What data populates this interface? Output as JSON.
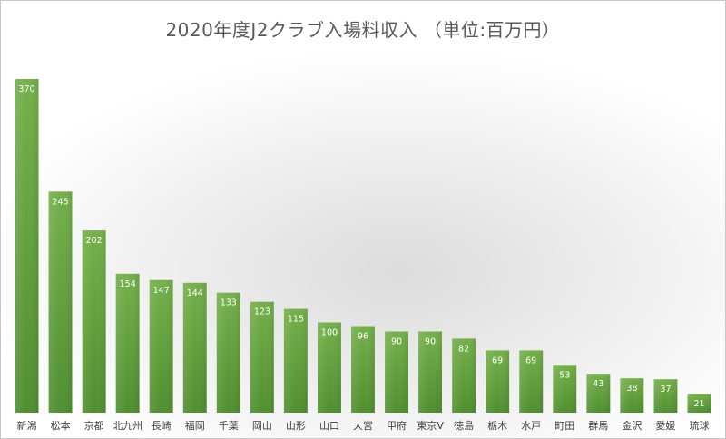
{
  "chart_data": {
    "type": "bar",
    "title": "2020年度J2クラブ入場料収入 （単位:百万円）",
    "xlabel": "",
    "ylabel": "",
    "ylim": [
      0,
      380
    ],
    "grid": false,
    "legend": "none",
    "categories": [
      "新潟",
      "松本",
      "京都",
      "北九州",
      "長崎",
      "福岡",
      "千葉",
      "岡山",
      "山形",
      "山口",
      "大宮",
      "甲府",
      "東京V",
      "徳島",
      "栃木",
      "水戸",
      "町田",
      "群馬",
      "金沢",
      "愛媛",
      "琉球"
    ],
    "values": [
      370,
      245,
      202,
      154,
      147,
      144,
      133,
      123,
      115,
      100,
      96,
      90,
      90,
      82,
      69,
      69,
      53,
      43,
      38,
      37,
      21
    ],
    "bar_color_top": "#74b04a",
    "bar_color_bottom": "#4f8f2f",
    "label_color": "#ffffff",
    "category_label_color": "#404040"
  }
}
